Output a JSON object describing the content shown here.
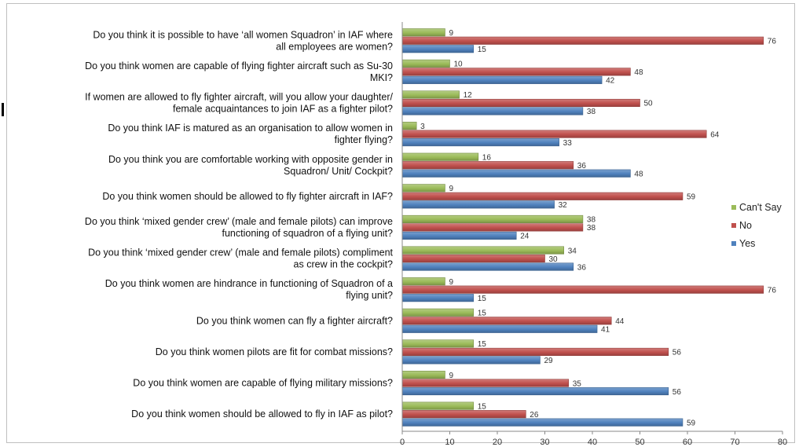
{
  "chart_data": {
    "type": "bar",
    "orientation": "horizontal",
    "categories": [
      [
        "Do you think it is possible to have ‘all women Squadron’ in IAF where",
        "all employees are women?"
      ],
      [
        "Do you think women are capable of flying fighter aircraft such as Su-30",
        "MKI?"
      ],
      [
        "If women are allowed to fly fighter aircraft, will you allow your daughter/",
        "female acquaintances to join IAF as a fighter pilot?"
      ],
      [
        "Do you think IAF is matured as an organisation to allow women in",
        "fighter flying?"
      ],
      [
        "Do you think you are comfortable working with opposite gender in",
        "Squadron/ Unit/ Cockpit?"
      ],
      [
        "Do you think women should be allowed to fly fighter aircraft in IAF?"
      ],
      [
        "Do you think ‘mixed gender crew’ (male and female pilots) can improve",
        "functioning of squadron of a flying unit?"
      ],
      [
        "Do you think ‘mixed gender crew’ (male and female pilots) compliment",
        "as crew in the cockpit?"
      ],
      [
        "Do you think women are hindrance in functioning of Squadron of a",
        "flying unit?"
      ],
      [
        "Do you think women can fly a fighter aircraft?"
      ],
      [
        "Do you think women pilots are fit for combat missions?"
      ],
      [
        "Do you think women are capable of flying military missions?"
      ],
      [
        "Do you think women should be allowed to fly in IAF as pilot?"
      ]
    ],
    "series": [
      {
        "name": "Can't Say",
        "color": "#9bbb59",
        "values": [
          9,
          10,
          12,
          3,
          16,
          9,
          38,
          34,
          9,
          15,
          15,
          9,
          15
        ]
      },
      {
        "name": "No",
        "color": "#c0504d",
        "values": [
          76,
          48,
          50,
          64,
          36,
          59,
          38,
          30,
          76,
          44,
          56,
          35,
          26
        ]
      },
      {
        "name": "Yes",
        "color": "#4f81bd",
        "values": [
          15,
          42,
          38,
          33,
          48,
          32,
          24,
          36,
          15,
          41,
          29,
          56,
          59
        ]
      }
    ],
    "legend_order": [
      "Can't Say",
      "No",
      "Yes"
    ],
    "legend_position": "right",
    "xlim": [
      0,
      80
    ],
    "xticks": [
      0,
      10,
      20,
      30,
      40,
      50,
      60,
      70,
      80
    ],
    "grid": false
  }
}
